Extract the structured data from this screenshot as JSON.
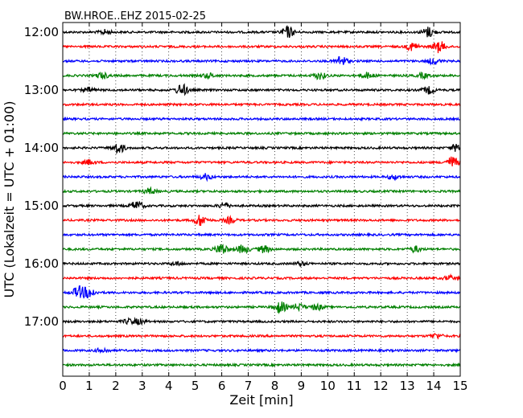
{
  "chart_data": {
    "type": "line",
    "title": "BW.HROE..EHZ 2015-02-25",
    "xlabel": "Zeit  [min]",
    "ylabel": "UTC (Lokalzeit = UTC + 01:00)",
    "xlim": [
      0,
      15
    ],
    "x_ticks": [
      "0",
      "1",
      "2",
      "3",
      "4",
      "5",
      "6",
      "7",
      "8",
      "9",
      "10",
      "11",
      "12",
      "13",
      "14",
      "15"
    ],
    "y_ticks": [
      "12:00",
      "13:00",
      "14:00",
      "15:00",
      "16:00",
      "17:00"
    ],
    "grid": "vertical dotted",
    "trace_interval_min": 15,
    "colors": [
      "#000000",
      "#ff0000",
      "#0000ff",
      "#008000"
    ],
    "traces": [
      {
        "start": "12:00",
        "bursts": [
          [
            1.6,
            0.4
          ],
          [
            8.5,
            1.0
          ],
          [
            13.8,
            0.9
          ]
        ]
      },
      {
        "start": "12:15",
        "bursts": [
          [
            13.2,
            0.7
          ],
          [
            14.2,
            1.0
          ]
        ]
      },
      {
        "start": "12:30",
        "bursts": [
          [
            10.5,
            0.9
          ],
          [
            14.0,
            0.5
          ]
        ]
      },
      {
        "start": "12:45",
        "bursts": [
          [
            1.5,
            0.5
          ],
          [
            5.5,
            0.4
          ],
          [
            9.7,
            0.6
          ],
          [
            11.5,
            0.5
          ],
          [
            13.6,
            0.4
          ]
        ]
      },
      {
        "start": "13:00",
        "bursts": [
          [
            1.0,
            0.4
          ],
          [
            4.5,
            1.0
          ],
          [
            13.8,
            0.6
          ]
        ]
      },
      {
        "start": "13:15",
        "bursts": []
      },
      {
        "start": "13:30",
        "bursts": []
      },
      {
        "start": "13:45",
        "bursts": []
      },
      {
        "start": "14:00",
        "bursts": [
          [
            2.1,
            0.9
          ],
          [
            14.9,
            0.7
          ]
        ]
      },
      {
        "start": "14:15",
        "bursts": [
          [
            1.0,
            0.4
          ],
          [
            14.7,
            1.0
          ]
        ]
      },
      {
        "start": "14:30",
        "bursts": [
          [
            5.4,
            0.5
          ],
          [
            12.5,
            0.4
          ]
        ]
      },
      {
        "start": "14:45",
        "bursts": [
          [
            3.3,
            0.5
          ]
        ]
      },
      {
        "start": "15:00",
        "bursts": [
          [
            2.8,
            0.8
          ],
          [
            6.1,
            0.5
          ]
        ]
      },
      {
        "start": "15:15",
        "bursts": [
          [
            5.2,
            1.0
          ],
          [
            6.3,
            0.5
          ]
        ]
      },
      {
        "start": "15:30",
        "bursts": []
      },
      {
        "start": "15:45",
        "bursts": [
          [
            6.0,
            1.0
          ],
          [
            6.8,
            0.7
          ],
          [
            7.6,
            0.6
          ],
          [
            13.3,
            0.5
          ]
        ]
      },
      {
        "start": "16:00",
        "bursts": [
          [
            4.3,
            0.3
          ],
          [
            9.0,
            0.3
          ]
        ]
      },
      {
        "start": "16:15",
        "bursts": [
          [
            14.6,
            0.4
          ]
        ]
      },
      {
        "start": "16:30",
        "bursts": [
          [
            0.6,
            1.0
          ],
          [
            1.0,
            0.9
          ]
        ]
      },
      {
        "start": "16:45",
        "bursts": [
          [
            8.2,
            1.0
          ],
          [
            8.9,
            0.6
          ],
          [
            9.6,
            0.5
          ]
        ]
      },
      {
        "start": "17:00",
        "bursts": [
          [
            2.5,
            0.4
          ],
          [
            2.9,
            0.4
          ]
        ]
      },
      {
        "start": "17:15",
        "bursts": [
          [
            14.1,
            0.4
          ]
        ]
      },
      {
        "start": "17:30",
        "bursts": [
          [
            1.5,
            0.4
          ]
        ]
      },
      {
        "start": "17:45",
        "bursts": []
      }
    ]
  }
}
